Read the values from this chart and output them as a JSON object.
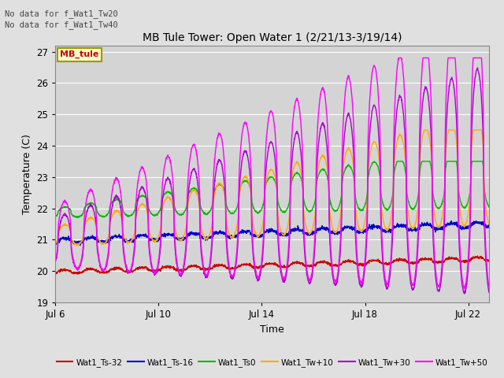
{
  "title": "MB Tule Tower: Open Water 1 (2/21/13-3/19/14)",
  "xlabel": "Time",
  "ylabel": "Temperature (C)",
  "ylim": [
    19.0,
    27.2
  ],
  "yticks": [
    19.0,
    20.0,
    21.0,
    22.0,
    23.0,
    24.0,
    25.0,
    26.0,
    27.0
  ],
  "xtick_labels": [
    "Jul 6",
    "Jul 10",
    "Jul 14",
    "Jul 18",
    "Jul 22"
  ],
  "xtick_positions": [
    0,
    4,
    8,
    12,
    16
  ],
  "xlim": [
    0,
    16.8
  ],
  "annotations": [
    "No data for f_Wat1_Tw20",
    "No data for f_Wat1_Tw40"
  ],
  "legend_box_label": "MB_tule",
  "background_color": "#e0e0e0",
  "plot_bg_color": "#d4d4d4",
  "series": [
    {
      "name": "Wat1_Ts-32",
      "color": "#cc0000",
      "lw": 1.0
    },
    {
      "name": "Wat1_Ts-16",
      "color": "#0000cc",
      "lw": 1.0
    },
    {
      "name": "Wat1_Ts0",
      "color": "#00bb00",
      "lw": 1.0
    },
    {
      "name": "Wat1_Tw+10",
      "color": "#ffaa00",
      "lw": 1.0
    },
    {
      "name": "Wat1_Tw+30",
      "color": "#aa00cc",
      "lw": 1.0
    },
    {
      "name": "Wat1_Tw+50",
      "color": "#ff00ff",
      "lw": 1.0
    }
  ]
}
